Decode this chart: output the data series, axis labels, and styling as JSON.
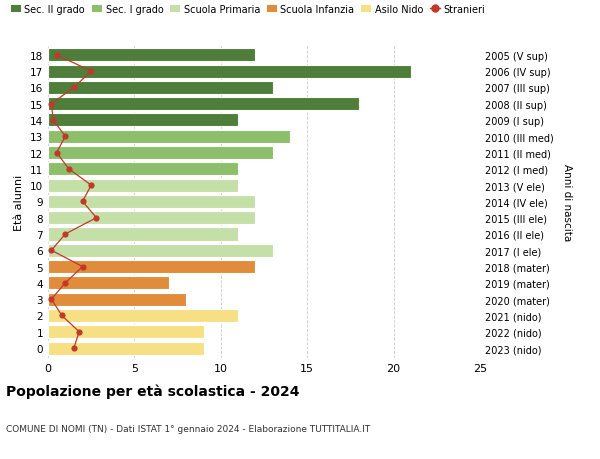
{
  "ages": [
    0,
    1,
    2,
    3,
    4,
    5,
    6,
    7,
    8,
    9,
    10,
    11,
    12,
    13,
    14,
    15,
    16,
    17,
    18
  ],
  "right_labels": [
    "2023 (nido)",
    "2022 (nido)",
    "2021 (nido)",
    "2020 (mater)",
    "2019 (mater)",
    "2018 (mater)",
    "2017 (I ele)",
    "2016 (II ele)",
    "2015 (III ele)",
    "2014 (IV ele)",
    "2013 (V ele)",
    "2012 (I med)",
    "2011 (II med)",
    "2010 (III med)",
    "2009 (I sup)",
    "2008 (II sup)",
    "2007 (III sup)",
    "2006 (IV sup)",
    "2005 (V sup)"
  ],
  "bar_values": [
    9,
    9,
    11,
    8,
    7,
    12,
    13,
    11,
    12,
    12,
    11,
    11,
    13,
    14,
    11,
    18,
    13,
    21,
    12
  ],
  "stranieri": [
    1.5,
    1.8,
    0.8,
    0.2,
    1.0,
    2.0,
    0.2,
    1.0,
    2.8,
    2.0,
    2.5,
    1.2,
    0.5,
    1.0,
    0.3,
    0.2,
    1.5,
    2.5,
    0.5
  ],
  "bar_colors": [
    "#f7e084",
    "#f7e084",
    "#f7e084",
    "#e08c3a",
    "#e08c3a",
    "#e08c3a",
    "#c5dfa8",
    "#c5dfa8",
    "#c5dfa8",
    "#c5dfa8",
    "#c5dfa8",
    "#8dbf6a",
    "#8dbf6a",
    "#8dbf6a",
    "#4e7e3a",
    "#4e7e3a",
    "#4e7e3a",
    "#4e7e3a",
    "#4e7e3a"
  ],
  "legend_colors": [
    "#4e7e3a",
    "#8dbf6a",
    "#c5dfa8",
    "#e08c3a",
    "#f7e084",
    "#c0392b"
  ],
  "legend_labels": [
    "Sec. II grado",
    "Sec. I grado",
    "Scuola Primaria",
    "Scuola Infanzia",
    "Asilo Nido",
    "Stranieri"
  ],
  "title": "Popolazione per età scolastica - 2024",
  "subtitle": "COMUNE DI NOMI (TN) - Dati ISTAT 1° gennaio 2024 - Elaborazione TUTTITALIA.IT",
  "ylabel": "Età alunni",
  "right_ylabel": "Anni di nascita",
  "xlim": [
    0,
    25
  ],
  "xticks": [
    0,
    5,
    10,
    15,
    20,
    25
  ],
  "background_color": "#ffffff",
  "grid_color": "#cccccc",
  "stranieri_color": "#c0392b"
}
